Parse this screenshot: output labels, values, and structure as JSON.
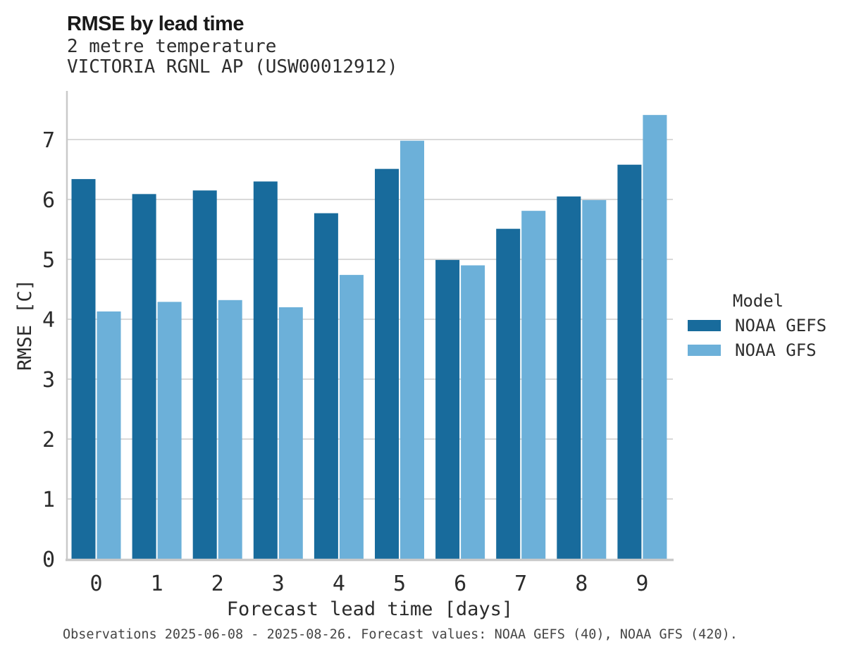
{
  "header": {
    "title": "RMSE by lead time",
    "subtitle_line1": "2 metre temperature",
    "subtitle_line2": "VICTORIA RGNL AP (USW00012912)"
  },
  "chart_data": {
    "type": "bar",
    "title": "RMSE by lead time",
    "subtitle": [
      "2 metre temperature",
      "VICTORIA RGNL AP (USW00012912)"
    ],
    "categories": [
      "0",
      "1",
      "2",
      "3",
      "4",
      "5",
      "6",
      "7",
      "8",
      "9"
    ],
    "series": [
      {
        "name": "NOAA GEFS",
        "color": "#186B9C",
        "values": [
          6.34,
          6.09,
          6.15,
          6.3,
          5.77,
          6.51,
          4.99,
          5.51,
          6.05,
          6.58
        ]
      },
      {
        "name": "NOAA GFS",
        "color": "#6CB0D9",
        "values": [
          4.13,
          4.29,
          4.32,
          4.2,
          4.74,
          6.98,
          4.9,
          5.81,
          5.99,
          7.41
        ]
      }
    ],
    "xlabel": "Forecast lead time [days]",
    "ylabel": "RMSE [C]",
    "ylim": [
      0,
      7.8
    ],
    "yticks": [
      0,
      1,
      2,
      3,
      4,
      5,
      6,
      7
    ],
    "grid": true,
    "legend_title": "Model",
    "legend_position": "right"
  },
  "legend": {
    "title": "Model",
    "items": [
      {
        "label": "NOAA GEFS",
        "color": "#186B9C"
      },
      {
        "label": "NOAA GFS",
        "color": "#6CB0D9"
      }
    ]
  },
  "footer": {
    "note": "Observations 2025-06-08 - 2025-08-26. Forecast values: NOAA GEFS (40), NOAA GFS (420)."
  },
  "style": {
    "grid_color": "#D9D9D9",
    "spine_color": "#C9C9C9",
    "text_color": "#2B2B2B",
    "background": "#FFFFFF"
  }
}
